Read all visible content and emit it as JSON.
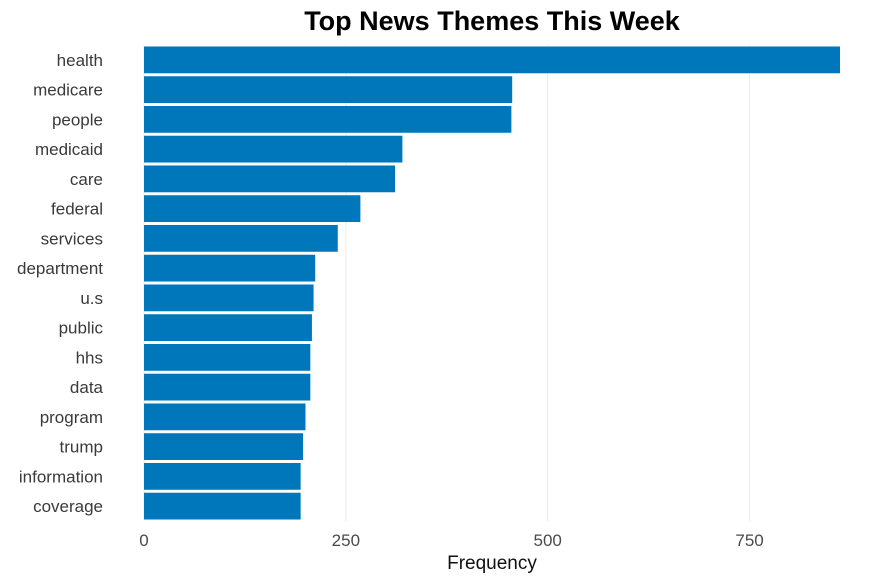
{
  "chart_data": {
    "type": "bar",
    "orientation": "horizontal",
    "title": "Top News Themes This Week",
    "xlabel": "Frequency",
    "ylabel": "",
    "categories": [
      "health",
      "medicare",
      "people",
      "medicaid",
      "care",
      "federal",
      "services",
      "department",
      "u.s",
      "public",
      "hhs",
      "data",
      "program",
      "trump",
      "information",
      "coverage"
    ],
    "values": [
      862,
      456,
      455,
      320,
      311,
      268,
      240,
      212,
      210,
      208,
      206,
      206,
      200,
      197,
      194,
      194
    ],
    "xlim": [
      0,
      862
    ],
    "xticks": [
      0,
      250,
      500,
      750
    ],
    "xtick_labels": [
      "0",
      "250",
      "500",
      "750"
    ],
    "bar_color": "#0077bb",
    "grid": "vertical major lines only",
    "legend": "none"
  }
}
